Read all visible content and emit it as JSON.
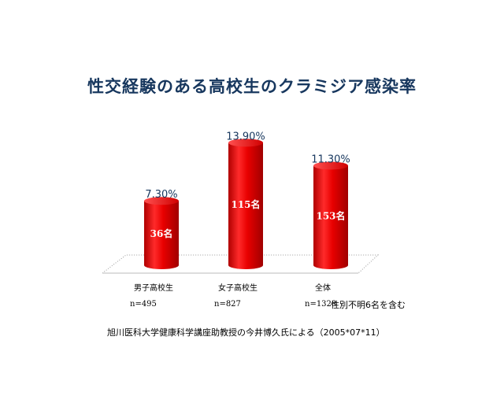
{
  "chart_data": {
    "type": "bar",
    "title": "性交経験のある高校生のクラミジア感染率",
    "categories": [
      "男子高校生",
      "女子高校生",
      "全体"
    ],
    "values": [
      7.3,
      13.9,
      11.3
    ],
    "value_labels": [
      "7.30%",
      "13.90%",
      "11.30%"
    ],
    "counts_labels": [
      "36名",
      "115名",
      "153名"
    ],
    "n_labels": [
      "n=495",
      "n=827",
      "n=1328"
    ],
    "bar_color": "#e00000",
    "ylim": [
      0,
      15
    ],
    "grid": false,
    "legend": "none"
  },
  "note": "性別不明6名を含む",
  "source": "旭川医科大学健康科学講座助教授の今井博久氏による（2005*07*11）"
}
